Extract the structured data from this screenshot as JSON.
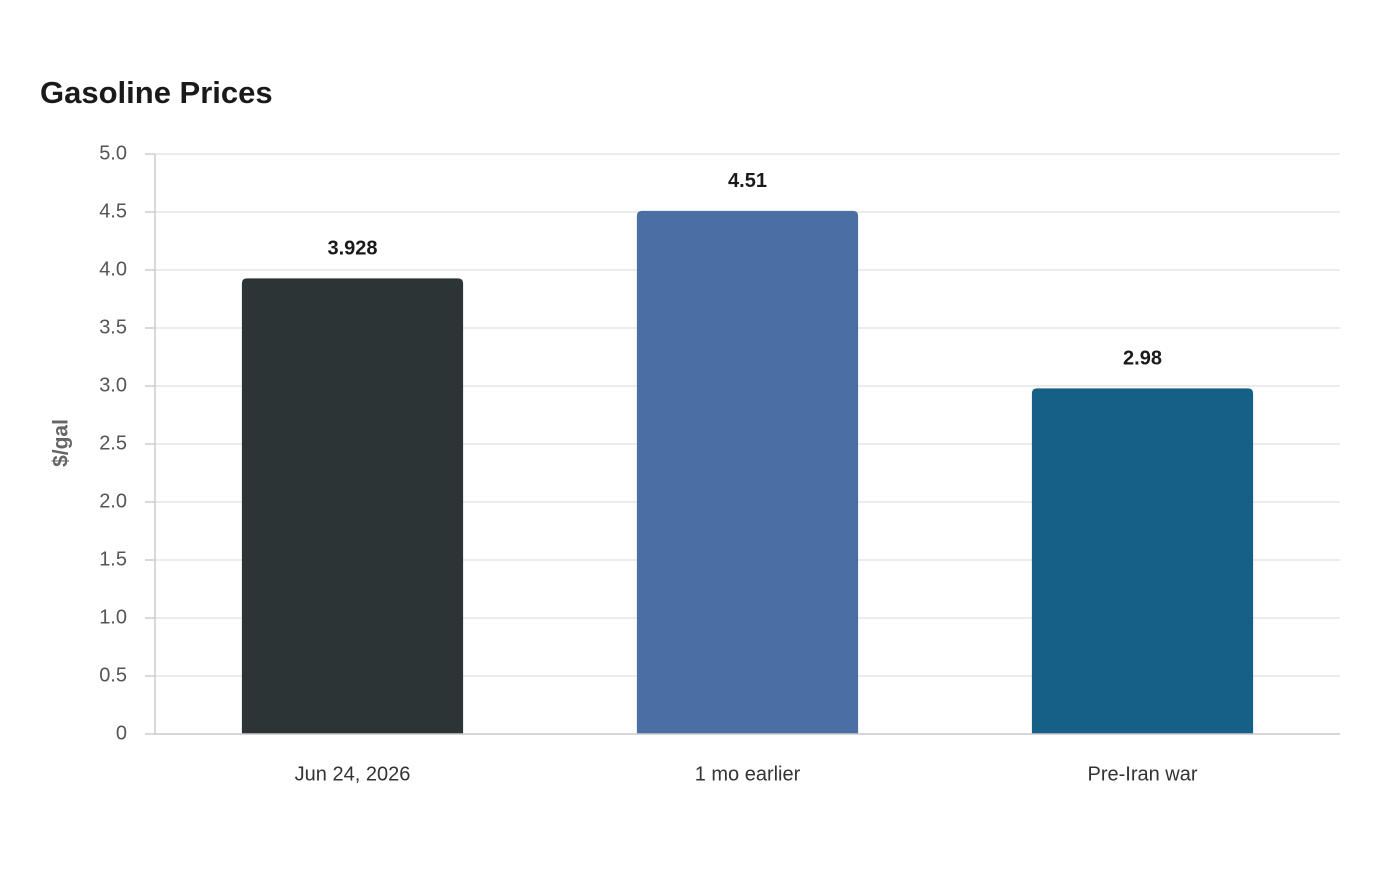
{
  "chart_data": {
    "type": "bar",
    "title": "Gasoline Prices",
    "y_label": "$/gal",
    "categories": [
      "Jun 24, 2026",
      "1 mo earlier",
      "Pre-Iran war"
    ],
    "values": [
      3.928,
      4.51,
      2.98
    ],
    "colors": [
      "#2d3436",
      "#4a6fa5",
      "#166088"
    ],
    "ylim": [
      0,
      5
    ],
    "yticks": [
      0,
      0.5,
      {
        "value": 1,
        "label": "1.0"
      },
      1.5,
      {
        "value": 2,
        "label": "2.0"
      },
      2.5,
      {
        "value": 3,
        "label": "3.0"
      },
      3.5,
      {
        "value": 4,
        "label": "4.0"
      },
      4.5,
      {
        "value": 5,
        "label": "5.0"
      }
    ],
    "grid": true
  }
}
